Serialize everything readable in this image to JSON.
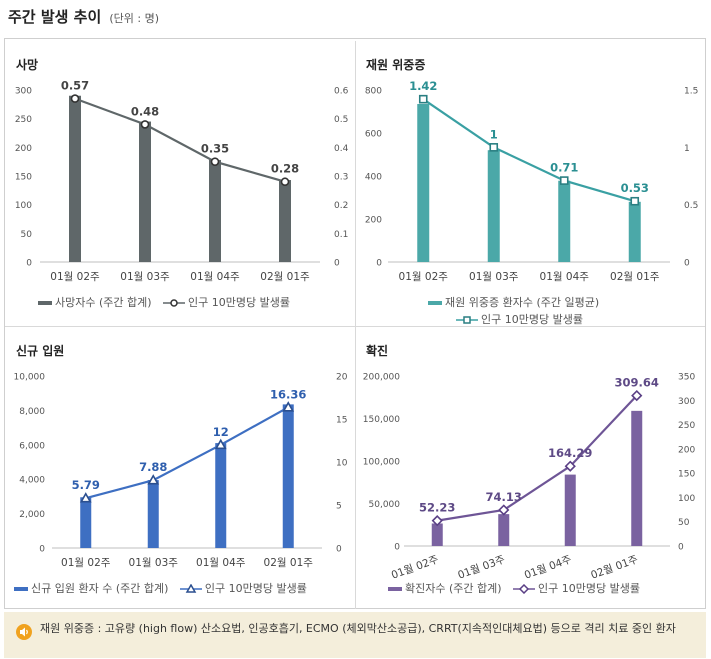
{
  "page": {
    "title": "주간 발생 추이",
    "unit": "(단위 : 명)"
  },
  "panels": [
    {
      "title": "사망",
      "bar_color": "#5f6769",
      "line_color": "#5f6769",
      "marker": "circle",
      "legend": {
        "bar": "사망자수 (주간 합계)",
        "line": "인구 10만명당 발생률"
      }
    },
    {
      "title": "재원 위중증",
      "bar_color": "#4ba8a8",
      "line_color": "#3aa0a3",
      "marker": "square",
      "legend": {
        "bar": "재원 위중증 환자수 (주간 일평균)",
        "line": "인구 10만명당 발생률"
      }
    },
    {
      "title": "신규 입원",
      "bar_color": "#3e6fc2",
      "line_color": "#3e6fc2",
      "marker": "triangle",
      "legend": {
        "bar": "신규 입원 환자 수 (주간 합계)",
        "line": "인구 10만명당 발생률"
      }
    },
    {
      "title": "확진",
      "bar_color": "#7a62a0",
      "line_color": "#6e5596",
      "marker": "diamond",
      "legend": {
        "bar": "확진자수 (주간 합계)",
        "line": "인구 10만명당 발생률"
      }
    }
  ],
  "chart_data": [
    {
      "type": "bar",
      "title": "사망",
      "categories": [
        "01월 02주",
        "01월 03주",
        "01월 04주",
        "02월 01주"
      ],
      "series": [
        {
          "name": "사망자수 (주간 합계)",
          "type": "bar",
          "axis": "left",
          "values": [
            290,
            245,
            178,
            143
          ]
        },
        {
          "name": "인구 10만명당 발생률",
          "type": "line",
          "axis": "right",
          "values": [
            0.57,
            0.48,
            0.35,
            0.28
          ],
          "labels": [
            "0.57",
            "0.48",
            "0.35",
            "0.28"
          ]
        }
      ],
      "y_left": {
        "range": [
          0,
          300
        ],
        "ticks": [
          "300",
          "250",
          "200",
          "150",
          "100",
          "50",
          "0"
        ]
      },
      "y_right": {
        "range": [
          0,
          0.6
        ],
        "ticks": [
          "0.6",
          "0.5",
          "0.4",
          "0.3",
          "0.2",
          "0.1",
          "0"
        ]
      },
      "legend_position": "bottom",
      "grid": false
    },
    {
      "type": "bar",
      "title": "재원 위중증",
      "categories": [
        "01월 02주",
        "01월 03주",
        "01월 04주",
        "02월 01주"
      ],
      "series": [
        {
          "name": "재원 위중증 환자수 (주간 일평균)",
          "type": "bar",
          "axis": "left",
          "values": [
            735,
            520,
            378,
            280
          ]
        },
        {
          "name": "인구 10만명당 발생률",
          "type": "line",
          "axis": "right",
          "values": [
            1.42,
            1.0,
            0.71,
            0.53
          ],
          "labels": [
            "1.42",
            "1",
            "0.71",
            "0.53"
          ]
        }
      ],
      "y_left": {
        "range": [
          0,
          800
        ],
        "ticks": [
          "800",
          "600",
          "400",
          "200",
          "0"
        ]
      },
      "y_right": {
        "range": [
          0,
          1.5
        ],
        "ticks": [
          "1.5",
          "1",
          "0.5",
          "0"
        ]
      },
      "legend_position": "bottom",
      "grid": false
    },
    {
      "type": "bar",
      "title": "신규 입원",
      "categories": [
        "01월 02주",
        "01월 03주",
        "01월 04주",
        "02월 01주"
      ],
      "series": [
        {
          "name": "신규 입원 환자 수 (주간 합계)",
          "type": "bar",
          "axis": "left",
          "values": [
            2950,
            3950,
            6100,
            8350
          ]
        },
        {
          "name": "인구 10만명당 발생률",
          "type": "line",
          "axis": "right",
          "values": [
            5.79,
            7.88,
            12,
            16.36
          ],
          "labels": [
            "5.79",
            "7.88",
            "12",
            "16.36"
          ]
        }
      ],
      "y_left": {
        "range": [
          0,
          10000
        ],
        "ticks": [
          "10,000",
          "8,000",
          "6,000",
          "4,000",
          "2,000",
          "0"
        ]
      },
      "y_right": {
        "range": [
          0,
          20
        ],
        "ticks": [
          "20",
          "15",
          "10",
          "5",
          "0"
        ]
      },
      "legend_position": "bottom",
      "grid": false
    },
    {
      "type": "bar",
      "title": "확진",
      "categories": [
        "01월 02주",
        "01월 03주",
        "01월 04주",
        "02월 01주"
      ],
      "series": [
        {
          "name": "확진자수 (주간 합계)",
          "type": "bar",
          "axis": "left",
          "values": [
            26500,
            37500,
            84000,
            159000
          ]
        },
        {
          "name": "인구 10만명당 발생률",
          "type": "line",
          "axis": "right",
          "values": [
            52.23,
            74.13,
            164.29,
            309.64
          ],
          "labels": [
            "52.23",
            "74.13",
            "164.29",
            "309.64"
          ]
        }
      ],
      "y_left": {
        "range": [
          0,
          200000
        ],
        "ticks": [
          "200,000",
          "150,000",
          "100,000",
          "50,000",
          "0"
        ]
      },
      "y_right": {
        "range": [
          0,
          350
        ],
        "ticks": [
          "350",
          "300",
          "250",
          "200",
          "150",
          "100",
          "50",
          "0"
        ]
      },
      "legend_position": "bottom",
      "grid": false,
      "x_labels_rotated": true
    }
  ],
  "note": {
    "icon": "speaker-icon",
    "text": "재원 위중증 : 고유량 (high flow) 산소요법, 인공호흡기, ECMO (체외막산소공급), CRRT(지속적인대체요법) 등으로 격리 치료 중인 환자"
  }
}
